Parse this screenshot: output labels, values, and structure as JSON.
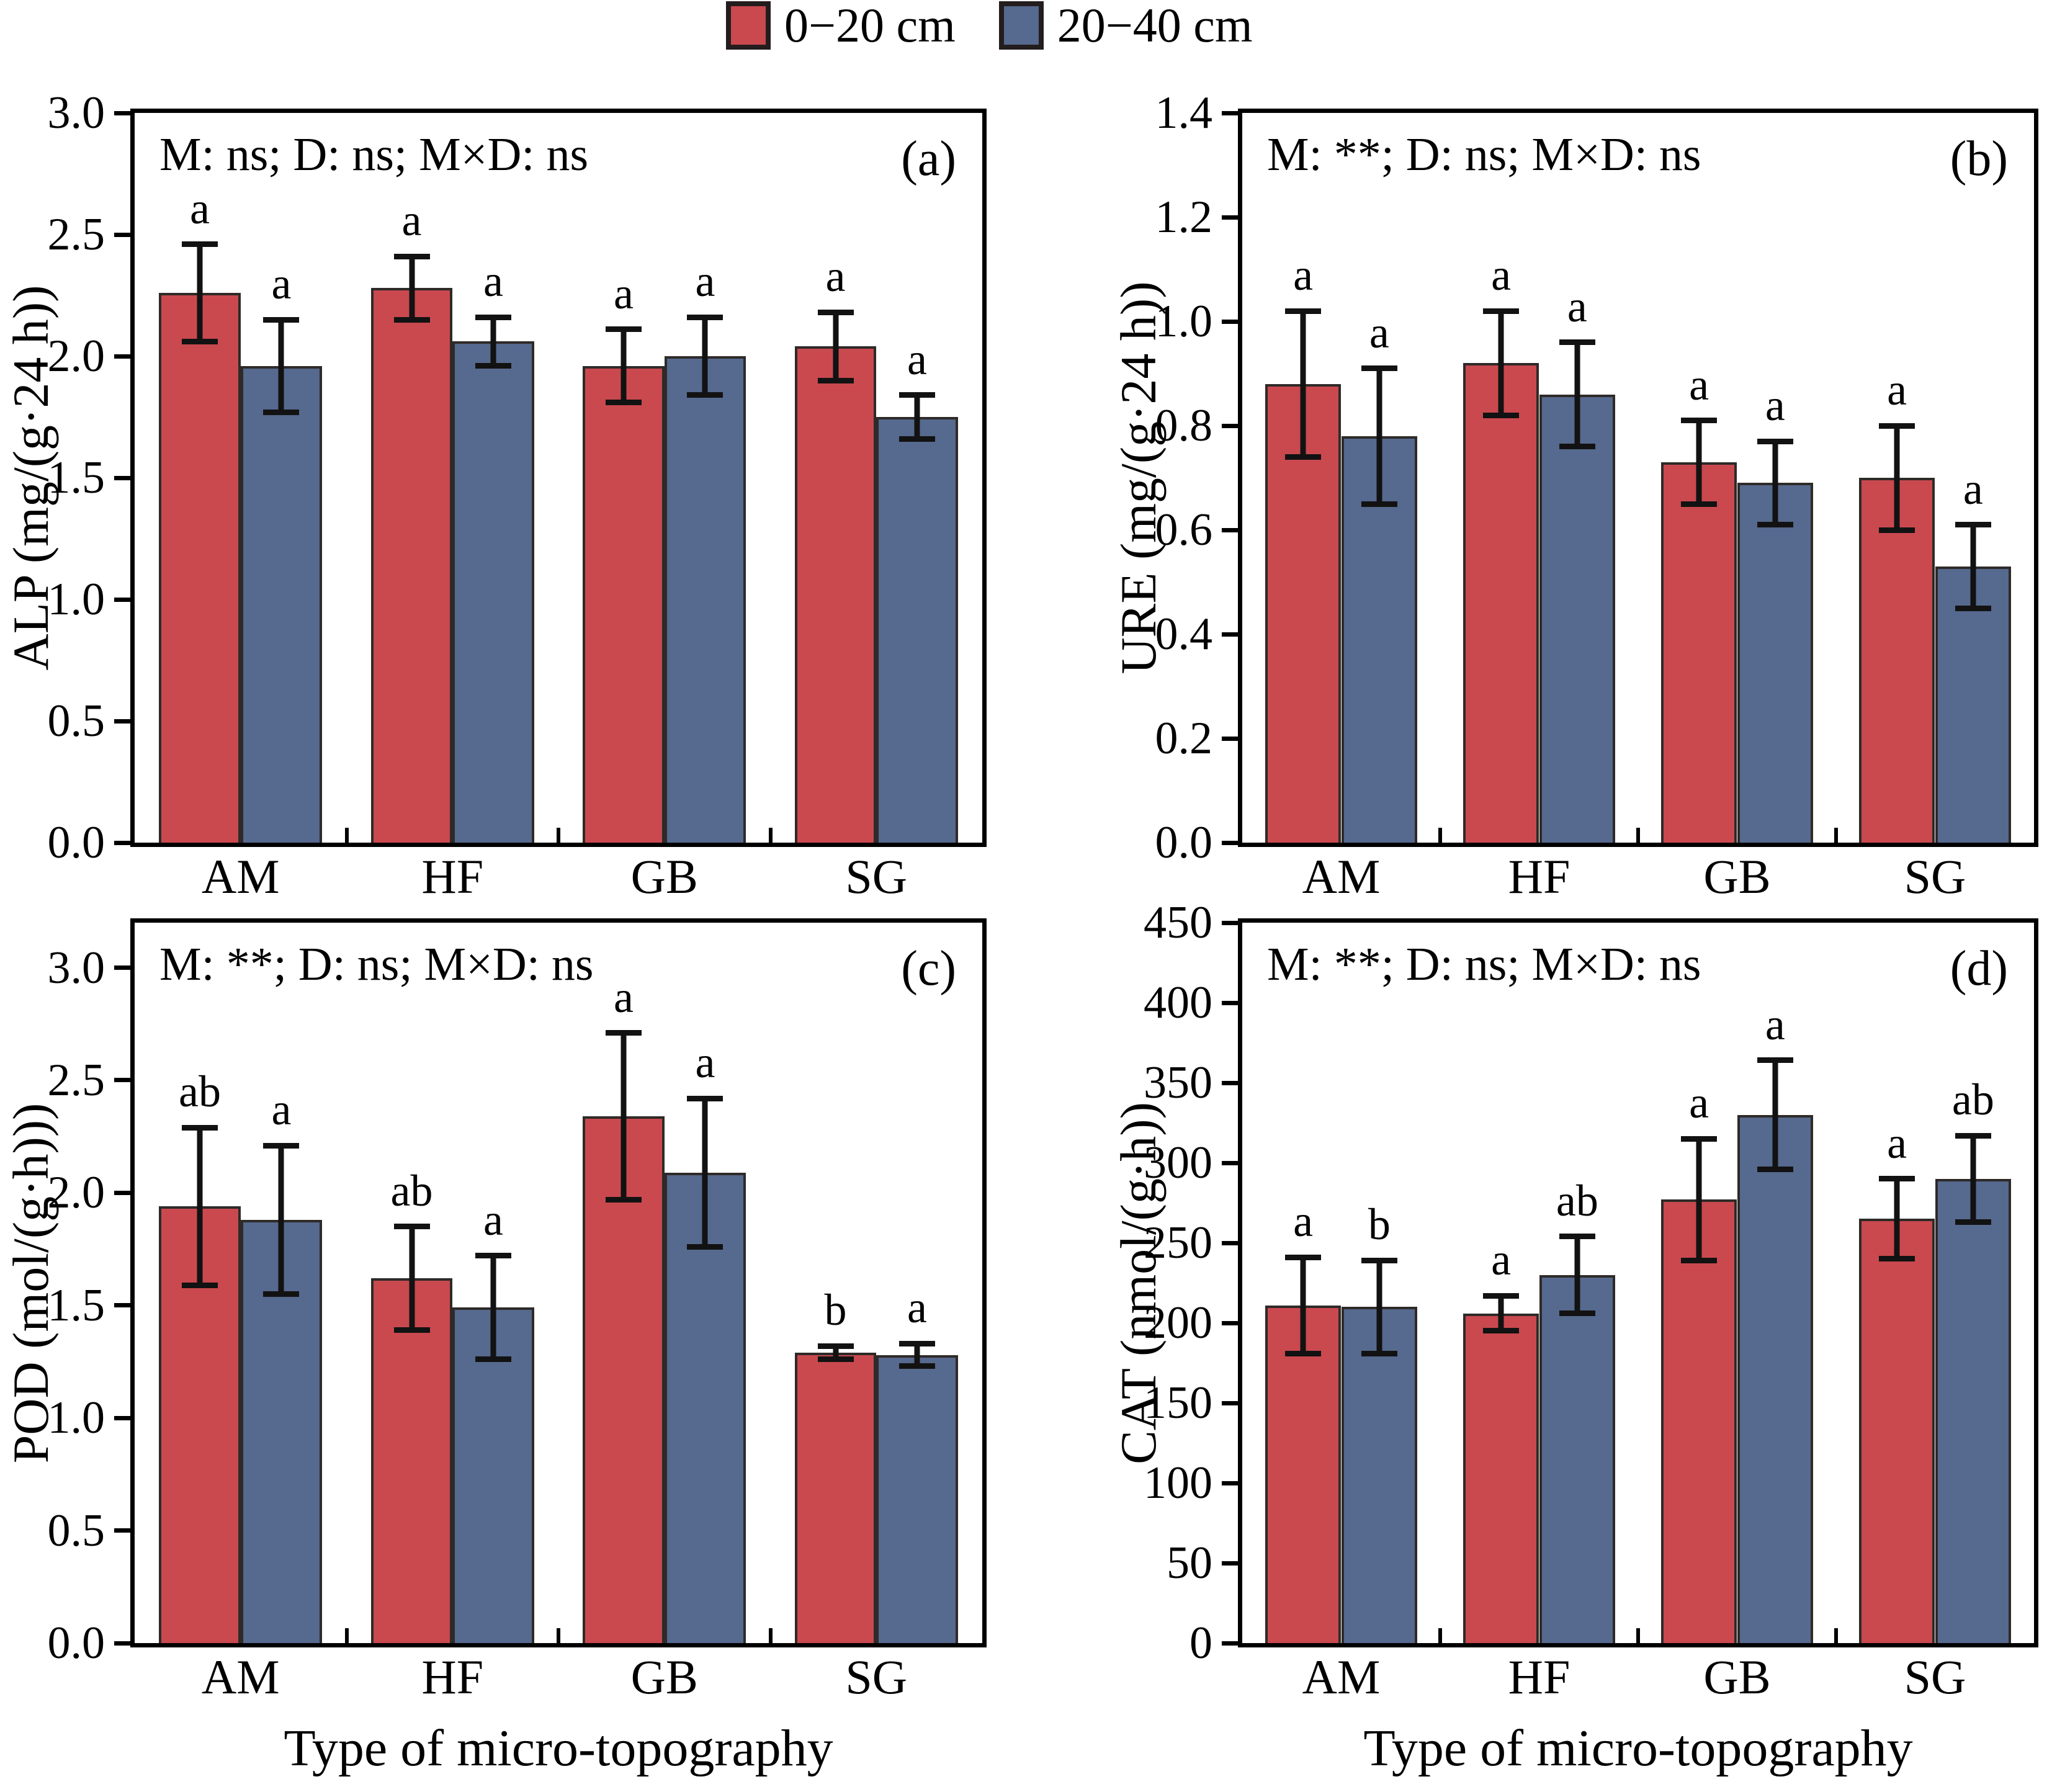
{
  "legend": {
    "items": [
      {
        "label": "0−20 cm",
        "color": "#c9494f"
      },
      {
        "label": "20−40 cm",
        "color": "#56698e"
      }
    ]
  },
  "figure": {
    "xlabel": "Type of micro-topography",
    "categories": [
      "AM",
      "HF",
      "GB",
      "SG"
    ],
    "colors": {
      "bar_red": "#c9494f",
      "bar_blue": "#56698e",
      "bar_border": "#2e2a28",
      "axis": "#000000",
      "error": "#121212"
    }
  },
  "chart_data": [
    {
      "type": "bar",
      "panel_letter": "(a)",
      "ylabel": "ALP (mg/(g·24 h))",
      "annotation": "M: ns; D: ns; M×D: ns",
      "xlabel": "",
      "categories": [
        "AM",
        "HF",
        "GB",
        "SG"
      ],
      "ylim": [
        0,
        3.0
      ],
      "yticks": [
        0.0,
        0.5,
        1.0,
        1.5,
        2.0,
        2.5,
        3.0
      ],
      "ytick_decimals": 1,
      "series": [
        {
          "name": "0-20 cm",
          "color": "#c9494f",
          "values": [
            2.26,
            2.28,
            1.96,
            2.04
          ],
          "errors": [
            0.2,
            0.13,
            0.15,
            0.14
          ],
          "letters": [
            "a",
            "a",
            "a",
            "a"
          ]
        },
        {
          "name": "20-40 cm",
          "color": "#56698e",
          "values": [
            1.96,
            2.06,
            2.0,
            1.75
          ],
          "errors": [
            0.19,
            0.1,
            0.16,
            0.09
          ],
          "letters": [
            "a",
            "a",
            "a",
            "a"
          ]
        }
      ]
    },
    {
      "type": "bar",
      "panel_letter": "(b)",
      "ylabel": "URE (mg/(g·24 h))",
      "annotation": "M: **; D: ns; M×D: ns",
      "xlabel": "",
      "categories": [
        "AM",
        "HF",
        "GB",
        "SG"
      ],
      "ylim": [
        0,
        1.4
      ],
      "yticks": [
        0.0,
        0.2,
        0.4,
        0.6,
        0.8,
        1.0,
        1.2,
        1.4
      ],
      "ytick_decimals": 1,
      "series": [
        {
          "name": "0-20 cm",
          "color": "#c9494f",
          "values": [
            0.88,
            0.92,
            0.73,
            0.7
          ],
          "errors": [
            0.14,
            0.1,
            0.08,
            0.1
          ],
          "letters": [
            "a",
            "a",
            "a",
            "a"
          ]
        },
        {
          "name": "20-40 cm",
          "color": "#56698e",
          "values": [
            0.78,
            0.86,
            0.69,
            0.53
          ],
          "errors": [
            0.13,
            0.1,
            0.08,
            0.08
          ],
          "letters": [
            "a",
            "a",
            "a",
            "a"
          ]
        }
      ]
    },
    {
      "type": "bar",
      "panel_letter": "(c)",
      "ylabel": "POD (mol/(g·h)))",
      "annotation": "M: **; D: ns; M×D: ns",
      "xlabel": "Type of micro-topography",
      "categories": [
        "AM",
        "HF",
        "GB",
        "SG"
      ],
      "ylim": [
        0,
        3.2
      ],
      "yticks": [
        0.0,
        0.5,
        1.0,
        1.5,
        2.0,
        2.5,
        3.0
      ],
      "ytick_decimals": 1,
      "series": [
        {
          "name": "0-20 cm",
          "color": "#c9494f",
          "values": [
            1.94,
            1.62,
            2.34,
            1.29
          ],
          "errors": [
            0.35,
            0.23,
            0.37,
            0.03
          ],
          "letters": [
            "ab",
            "ab",
            "a",
            "b"
          ]
        },
        {
          "name": "20-40 cm",
          "color": "#56698e",
          "values": [
            1.88,
            1.49,
            2.09,
            1.28
          ],
          "errors": [
            0.33,
            0.23,
            0.33,
            0.05
          ],
          "letters": [
            "a",
            "a",
            "a",
            "a"
          ]
        }
      ]
    },
    {
      "type": "bar",
      "panel_letter": "(d)",
      "ylabel": "CAT (nmol/(g·h))",
      "annotation": "M: **; D: ns; M×D: ns",
      "xlabel": "Type of micro-topography",
      "categories": [
        "AM",
        "HF",
        "GB",
        "SG"
      ],
      "ylim": [
        0,
        450
      ],
      "yticks": [
        0,
        50,
        100,
        150,
        200,
        250,
        300,
        350,
        400,
        450
      ],
      "ytick_decimals": 0,
      "series": [
        {
          "name": "0-20 cm",
          "color": "#c9494f",
          "values": [
            211,
            206,
            277,
            265
          ],
          "errors": [
            30,
            11,
            38,
            25
          ],
          "letters": [
            "a",
            "a",
            "a",
            "a"
          ]
        },
        {
          "name": "20-40 cm",
          "color": "#56698e",
          "values": [
            210,
            230,
            330,
            290
          ],
          "errors": [
            29,
            24,
            34,
            27
          ],
          "letters": [
            "b",
            "ab",
            "a",
            "ab"
          ]
        }
      ]
    }
  ]
}
